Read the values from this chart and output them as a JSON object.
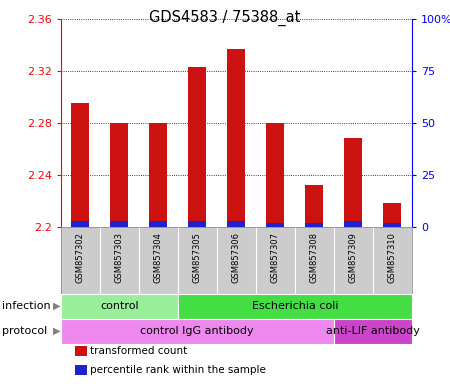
{
  "title": "GDS4583 / 75388_at",
  "samples": [
    "GSM857302",
    "GSM857303",
    "GSM857304",
    "GSM857305",
    "GSM857306",
    "GSM857307",
    "GSM857308",
    "GSM857309",
    "GSM857310"
  ],
  "red_values": [
    2.295,
    2.28,
    2.28,
    2.323,
    2.337,
    2.28,
    2.232,
    2.268,
    2.218
  ],
  "blue_values": [
    0.004,
    0.004,
    0.004,
    0.004,
    0.004,
    0.003,
    0.003,
    0.004,
    0.003
  ],
  "ylim_left": [
    2.2,
    2.36
  ],
  "ylim_right": [
    0,
    100
  ],
  "yticks_left": [
    2.2,
    2.24,
    2.28,
    2.32,
    2.36
  ],
  "yticks_right": [
    0,
    25,
    50,
    75,
    100
  ],
  "ytick_labels_right": [
    "0",
    "25",
    "50",
    "75",
    "100%"
  ],
  "base": 2.2,
  "red_color": "#CC1111",
  "blue_color": "#2222CC",
  "bg_color": "#CCCCCC",
  "infection_groups": [
    {
      "label": "control",
      "start": 0,
      "end": 3,
      "color": "#99EE99"
    },
    {
      "label": "Escherichia coli",
      "start": 3,
      "end": 9,
      "color": "#44DD44"
    }
  ],
  "protocol_groups": [
    {
      "label": "control IgG antibody",
      "start": 0,
      "end": 7,
      "color": "#EE88EE"
    },
    {
      "label": "anti-LIF antibody",
      "start": 7,
      "end": 9,
      "color": "#CC44CC"
    }
  ],
  "legend_items": [
    {
      "color": "#CC1111",
      "label": "transformed count"
    },
    {
      "color": "#2222CC",
      "label": "percentile rank within the sample"
    }
  ],
  "infection_label": "infection",
  "protocol_label": "protocol"
}
